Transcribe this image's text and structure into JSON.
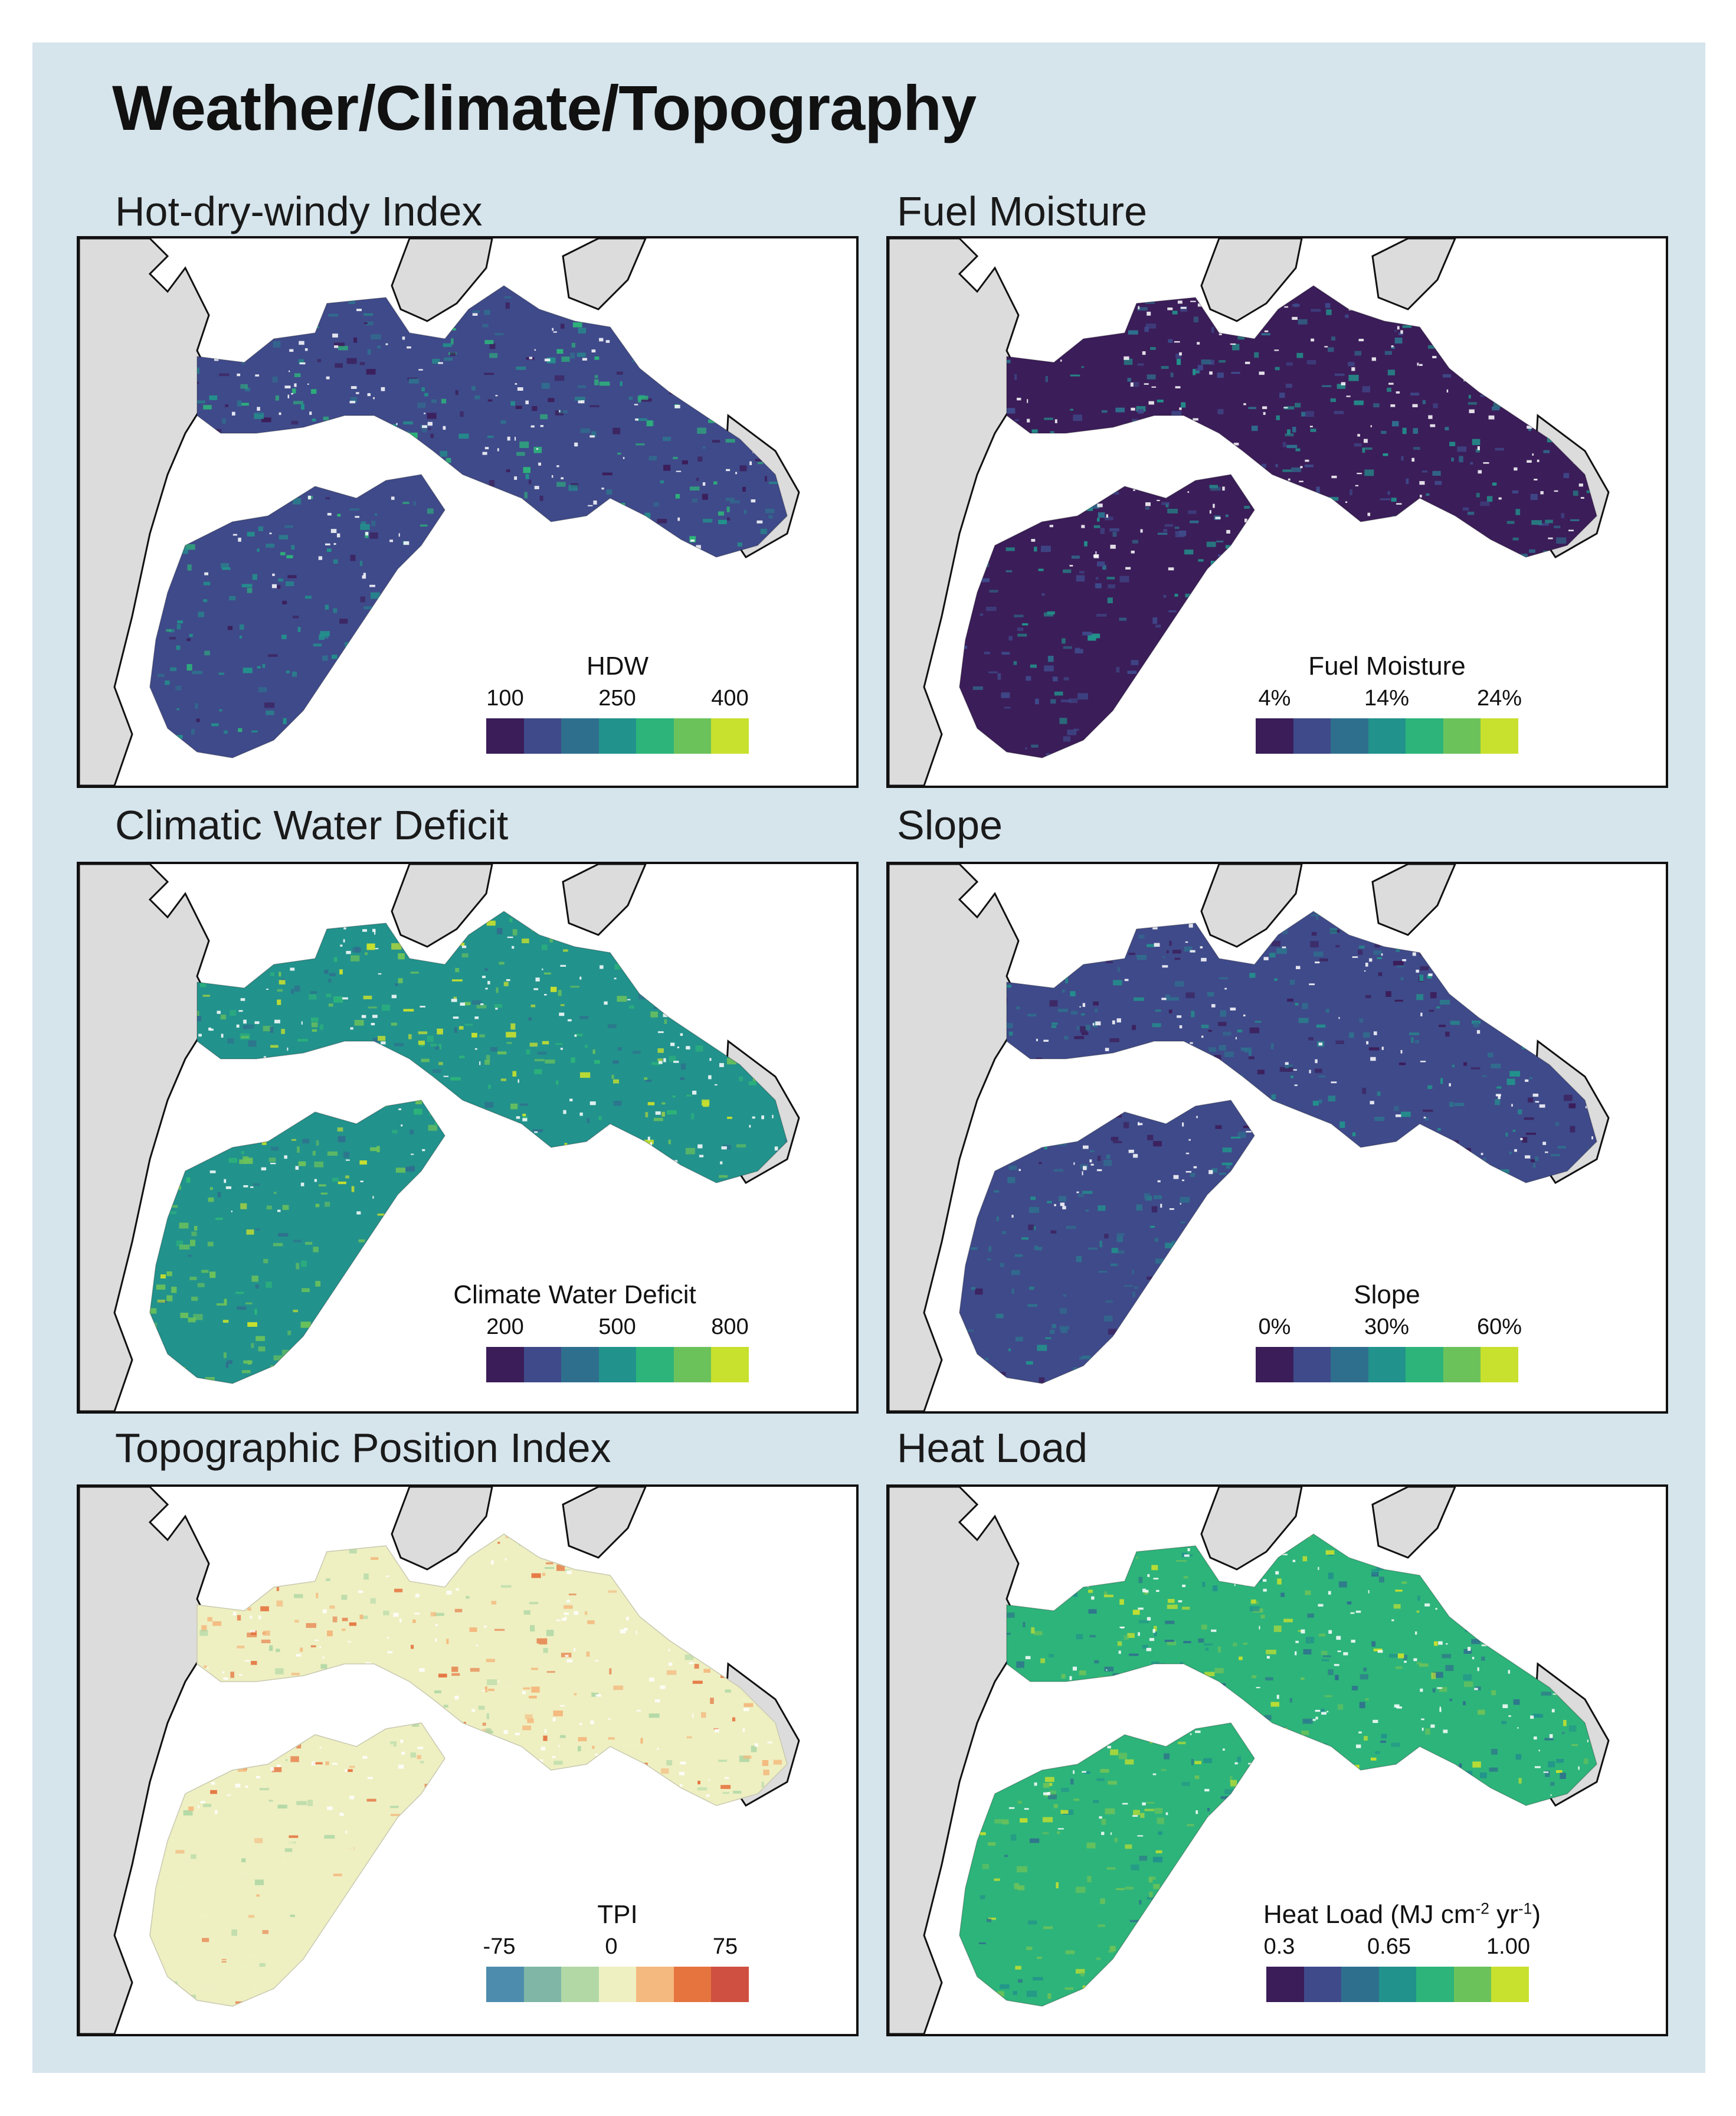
{
  "title": "Weather/Climate/Topography",
  "colors": {
    "background": "#d6e4ec",
    "land_outside": "#dcdcdc",
    "viridis": [
      "#3b1d59",
      "#3f4a8a",
      "#2f6f8e",
      "#22928c",
      "#2db47a",
      "#6cc25a",
      "#c8e02e"
    ],
    "tpi": [
      "#4e8cae",
      "#7fb6a6",
      "#b2d8a6",
      "#eef0c2",
      "#f4b97e",
      "#e5743f",
      "#cf5040"
    ]
  },
  "panels": [
    {
      "id": "hdw",
      "title": "Hot-dry-windy Index",
      "legend": {
        "title": "HDW",
        "ticks": [
          "100",
          "250",
          "400"
        ],
        "palette": "viridis"
      },
      "texture": {
        "base": 1,
        "alt": [
          0,
          2,
          3,
          4
        ],
        "south_bias": 3
      }
    },
    {
      "id": "fuel",
      "title": "Fuel Moisture",
      "legend": {
        "title": "Fuel Moisture",
        "ticks": [
          "4%",
          "14%",
          "24%"
        ],
        "palette": "viridis"
      },
      "texture": {
        "base": 0,
        "alt": [
          1,
          2,
          3
        ],
        "south_bias": 1
      }
    },
    {
      "id": "cwd",
      "title": "Climatic Water Deficit",
      "legend": {
        "title": "Climate Water Deficit",
        "ticks": [
          "200",
          "500",
          "800"
        ],
        "palette": "viridis"
      },
      "texture": {
        "base": 3,
        "alt": [
          2,
          4,
          5,
          6
        ],
        "south_bias": 5
      }
    },
    {
      "id": "slope",
      "title": "Slope",
      "legend": {
        "title": "Slope",
        "ticks": [
          "0%",
          "30%",
          "60%"
        ],
        "palette": "viridis"
      },
      "texture": {
        "base": 1,
        "alt": [
          0,
          2,
          3
        ],
        "south_bias": 2
      }
    },
    {
      "id": "tpi",
      "title": "Topographic Position Index",
      "legend": {
        "title": "TPI",
        "ticks": [
          "-75",
          "0",
          "75"
        ],
        "palette": "tpi"
      },
      "texture": {
        "base": 3,
        "alt": [
          2,
          4,
          5,
          3
        ],
        "south_bias": 3
      }
    },
    {
      "id": "heat",
      "title": "Heat Load",
      "legend": {
        "title": "Heat Load (MJ cm",
        "title_sup1": "-2",
        "title_mid": " yr",
        "title_sup2": "-1",
        "title_end": ")",
        "ticks": [
          "0.3",
          "0.65",
          "1.00"
        ],
        "palette": "viridis"
      },
      "texture": {
        "base": 4,
        "alt": [
          3,
          5,
          6,
          2
        ],
        "south_bias": 5
      }
    }
  ]
}
